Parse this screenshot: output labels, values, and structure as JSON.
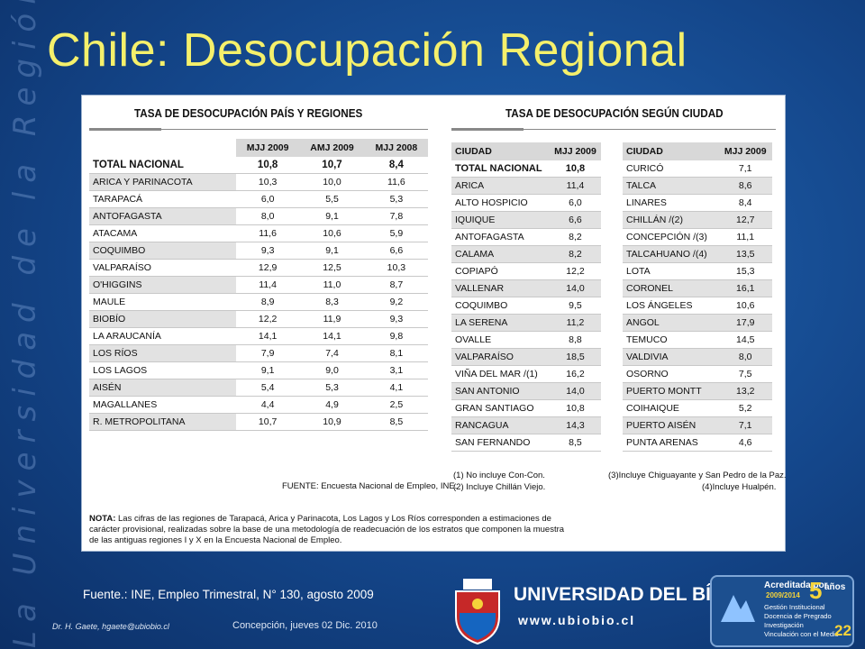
{
  "sidebar_text": "La Universidad de la Región del Bío-Bío",
  "title": "Chile: Desocupación Regional",
  "left_table": {
    "title": "TASA DE DESOCUPACIÓN PAÍS Y REGIONES",
    "headers": [
      "MJJ 2009",
      "AMJ 2009",
      "MJJ 2008"
    ],
    "total": {
      "label": "TOTAL NACIONAL",
      "values": [
        "10,8",
        "10,7",
        "8,4"
      ]
    },
    "rows": [
      {
        "label": "ARICA Y PARINACOTA",
        "values": [
          "10,3",
          "10,0",
          "11,6"
        ]
      },
      {
        "label": "TARAPACÁ",
        "values": [
          "6,0",
          "5,5",
          "5,3"
        ]
      },
      {
        "label": "ANTOFAGASTA",
        "values": [
          "8,0",
          "9,1",
          "7,8"
        ]
      },
      {
        "label": "ATACAMA",
        "values": [
          "11,6",
          "10,6",
          "5,9"
        ]
      },
      {
        "label": "COQUIMBO",
        "values": [
          "9,3",
          "9,1",
          "6,6"
        ]
      },
      {
        "label": "VALPARAÍSO",
        "values": [
          "12,9",
          "12,5",
          "10,3"
        ]
      },
      {
        "label": "O'HIGGINS",
        "values": [
          "11,4",
          "11,0",
          "8,7"
        ]
      },
      {
        "label": "MAULE",
        "values": [
          "8,9",
          "8,3",
          "9,2"
        ]
      },
      {
        "label": "BIOBÍO",
        "values": [
          "12,2",
          "11,9",
          "9,3"
        ]
      },
      {
        "label": "LA ARAUCANÍA",
        "values": [
          "14,1",
          "14,1",
          "9,8"
        ]
      },
      {
        "label": "LOS RÍOS",
        "values": [
          "7,9",
          "7,4",
          "8,1"
        ]
      },
      {
        "label": "LOS LAGOS",
        "values": [
          "9,1",
          "9,0",
          "3,1"
        ]
      },
      {
        "label": "AISÉN",
        "values": [
          "5,4",
          "5,3",
          "4,1"
        ]
      },
      {
        "label": "MAGALLANES",
        "values": [
          "4,4",
          "4,9",
          "2,5"
        ]
      },
      {
        "label": "R. METROPOLITANA",
        "values": [
          "10,7",
          "10,9",
          "8,5"
        ]
      }
    ],
    "source": "FUENTE: Encuesta Nacional de Empleo, INE."
  },
  "right_table": {
    "title": "TASA DE DESOCUPACIÓN SEGÚN CIUDAD",
    "col_city": "CIUDAD",
    "col_value": "MJJ 2009",
    "left_rows": [
      {
        "city": "TOTAL NACIONAL",
        "value": "10,8"
      },
      {
        "city": "ARICA",
        "value": "11,4"
      },
      {
        "city": "ALTO HOSPICIO",
        "value": "6,0"
      },
      {
        "city": "IQUIQUE",
        "value": "6,6"
      },
      {
        "city": "ANTOFAGASTA",
        "value": "8,2"
      },
      {
        "city": "CALAMA",
        "value": "8,2"
      },
      {
        "city": "COPIAPÓ",
        "value": "12,2"
      },
      {
        "city": "VALLENAR",
        "value": "14,0"
      },
      {
        "city": "COQUIMBO",
        "value": "9,5"
      },
      {
        "city": "LA SERENA",
        "value": "11,2"
      },
      {
        "city": "OVALLE",
        "value": "8,8"
      },
      {
        "city": "VALPARAÍSO",
        "value": "18,5"
      },
      {
        "city": "VIÑA DEL MAR /(1)",
        "value": "16,2"
      },
      {
        "city": "SAN ANTONIO",
        "value": "14,0"
      },
      {
        "city": "GRAN SANTIAGO",
        "value": "10,8"
      },
      {
        "city": "RANCAGUA",
        "value": "14,3"
      },
      {
        "city": "SAN FERNANDO",
        "value": "8,5"
      }
    ],
    "right_rows": [
      {
        "city": "CURICÓ",
        "value": "7,1"
      },
      {
        "city": "TALCA",
        "value": "8,6"
      },
      {
        "city": "LINARES",
        "value": "8,4"
      },
      {
        "city": "CHILLÁN /(2)",
        "value": "12,7"
      },
      {
        "city": "CONCEPCIÓN /(3)",
        "value": "11,1"
      },
      {
        "city": "TALCAHUANO /(4)",
        "value": "13,5"
      },
      {
        "city": "LOTA",
        "value": "15,3"
      },
      {
        "city": "CORONEL",
        "value": "16,1"
      },
      {
        "city": "LOS ÁNGELES",
        "value": "10,6"
      },
      {
        "city": "ANGOL",
        "value": "17,9"
      },
      {
        "city": "TEMUCO",
        "value": "14,5"
      },
      {
        "city": "VALDIVIA",
        "value": "8,0"
      },
      {
        "city": "OSORNO",
        "value": "7,5"
      },
      {
        "city": "PUERTO MONTT",
        "value": "13,2"
      },
      {
        "city": "COIHAIQUE",
        "value": "5,2"
      },
      {
        "city": "PUERTO AISÉN",
        "value": "7,1"
      },
      {
        "city": "PUNTA ARENAS",
        "value": "4,6"
      }
    ],
    "footnotes": {
      "n1": "(1) No incluye Con-Con.",
      "n2": "(2) Incluye Chillán Viejo.",
      "n3": "(3)Incluye Chiguayante y San Pedro de la Paz.",
      "n4": "(4)Incluye Hualpén."
    }
  },
  "nota": {
    "label": "NOTA:",
    "text": "Las cifras de las regiones de Tarapacá, Arica y Parinacota, Los Lagos y Los Ríos corresponden a estimaciones de carácter provisional, realizadas sobre la base de una metodología de readecuación de los estratos que componen la muestra de las antiguas regiones I y X en la Encuesta Nacional de Empleo."
  },
  "footer": {
    "source": "Fuente.: INE, Empleo Trimestral, N° 130, agosto 2009",
    "author": "Dr. H. Gaete,    hgaete@ubiobio.cl",
    "date": "Concepción, jueves 02 Dic. 2010",
    "university": "UNIVERSIDAD DEL BÍO-BÍO",
    "url": "www.ubiobio.cl",
    "page": "22"
  },
  "accreditation": {
    "heading": "Acreditada por",
    "years_number": "5",
    "years_word": "años",
    "period": "2009/2014",
    "items": [
      "Gestión Institucional",
      "Docencia de Pregrado",
      "Investigación",
      "Vinculación con el Medio"
    ]
  },
  "colors": {
    "background": "#14468a",
    "title": "#f5f06b",
    "accent_yellow": "#f5d33a"
  }
}
